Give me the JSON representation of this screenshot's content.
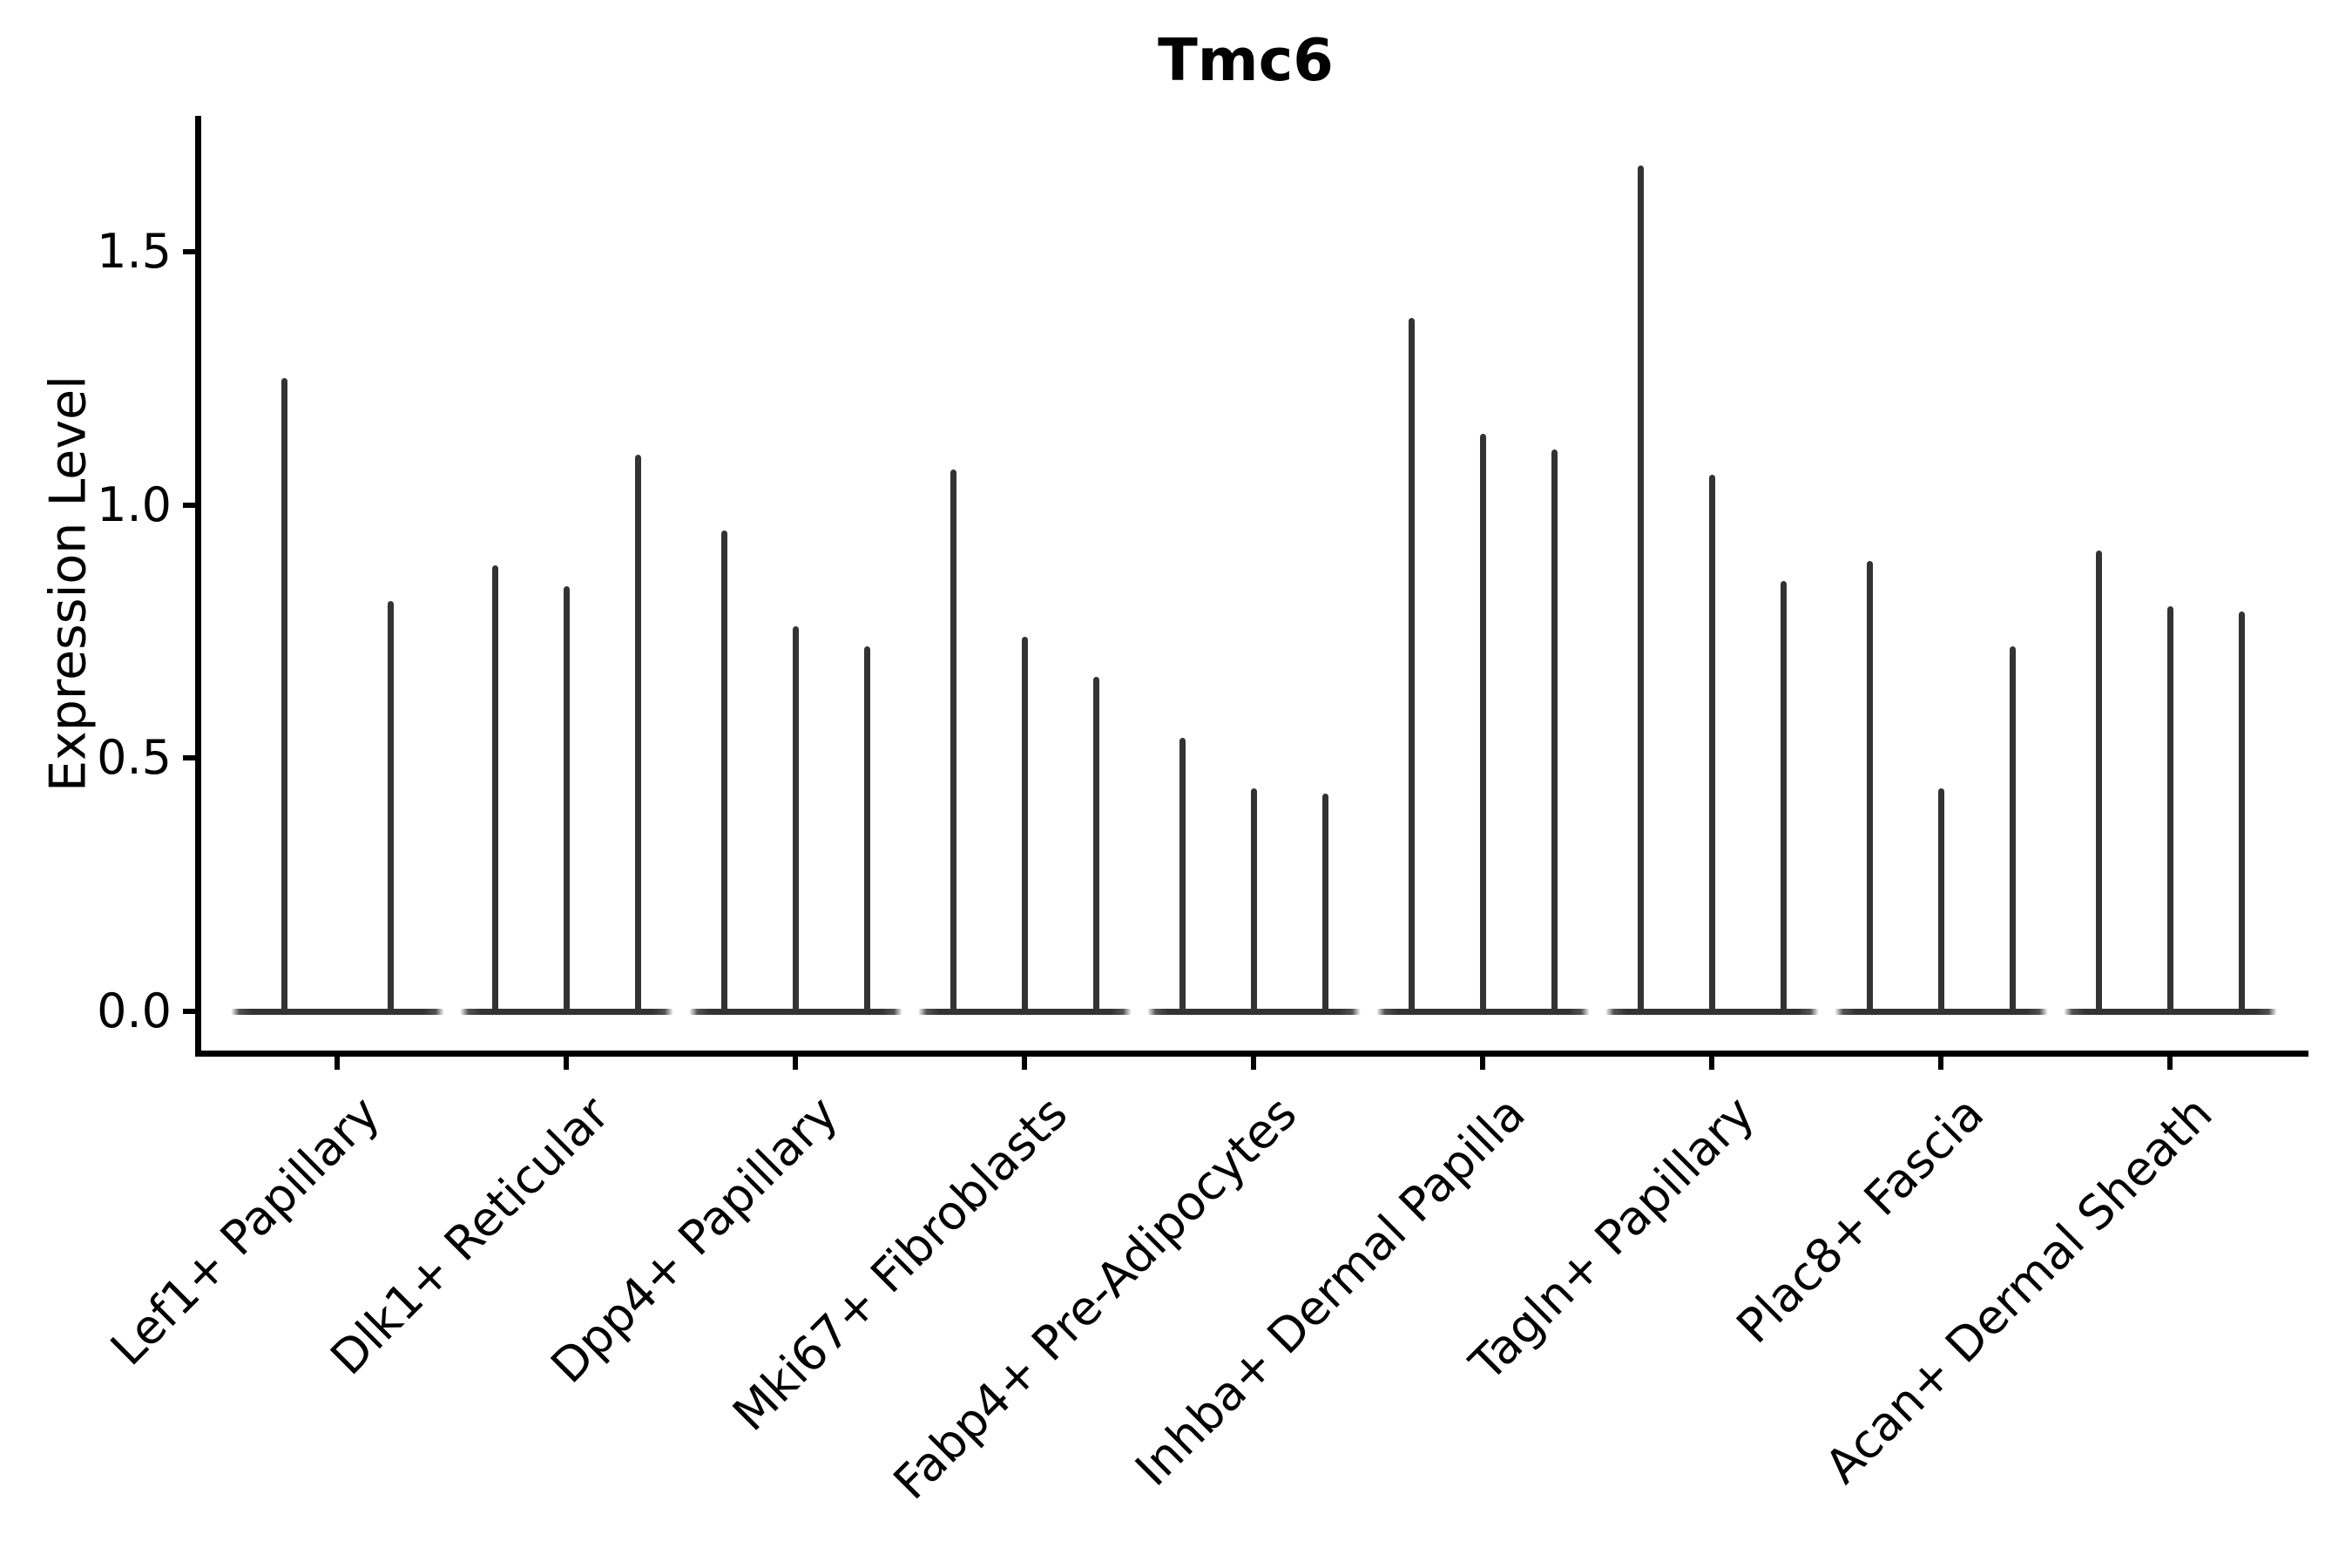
{
  "chart_data": {
    "type": "violin",
    "title": "Tmc6",
    "ylabel": "Expression Level",
    "xlabel": "",
    "ylim": [
      -0.08,
      1.77
    ],
    "yticks": [
      0.0,
      0.5,
      1.0,
      1.5
    ],
    "ytick_labels": [
      "0.0",
      "0.5",
      "1.0",
      "1.5"
    ],
    "grid": false,
    "legend": null,
    "categories": [
      "Lef1+ Papillary",
      "Dlk1+ Reticular",
      "Dpp4+ Papillary",
      "Mki67+ Fibroblasts",
      "Fabp4+ Pre-Adipocytes",
      "Inhba+ Dermal Papilla",
      "Tagln+ Papillary",
      "Plac8+ Fascia",
      "Acan+ Dermal Sheath"
    ],
    "violins": [
      {
        "category": "Lef1+ Papillary",
        "peaks": [
          1.25,
          0.81
        ]
      },
      {
        "category": "Dlk1+ Reticular",
        "peaks": [
          0.88,
          0.84,
          1.1
        ]
      },
      {
        "category": "Dpp4+ Papillary",
        "peaks": [
          0.95,
          0.76,
          0.72
        ]
      },
      {
        "category": "Mki67+ Fibroblasts",
        "peaks": [
          1.07,
          0.74,
          0.66
        ]
      },
      {
        "category": "Fabp4+ Pre-Adipocytes",
        "peaks": [
          0.54,
          0.44,
          0.43
        ]
      },
      {
        "category": "Inhba+ Dermal Papilla",
        "peaks": [
          1.37,
          1.14,
          1.11
        ]
      },
      {
        "category": "Tagln+ Papillary",
        "peaks": [
          1.67,
          1.06,
          0.85
        ]
      },
      {
        "category": "Plac8+ Fascia",
        "peaks": [
          0.89,
          0.44,
          0.72
        ]
      },
      {
        "category": "Acan+ Dermal Sheath",
        "peaks": [
          0.91,
          0.8,
          0.79
        ]
      }
    ],
    "style": {
      "violin_color": "#333333",
      "axis_color": "#000000",
      "background": "#ffffff"
    }
  }
}
